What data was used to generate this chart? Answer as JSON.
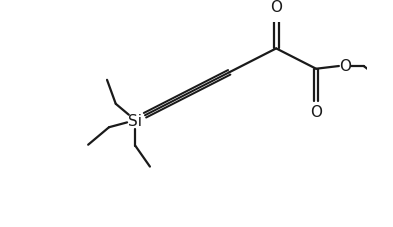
{
  "bg_color": "#ffffff",
  "line_color": "#1a1a1a",
  "line_width": 1.6,
  "figsize": [
    3.93,
    2.28
  ],
  "dpi": 100,
  "xlim": [
    0,
    10
  ],
  "ylim": [
    0,
    6
  ],
  "si_x": 3.2,
  "si_y": 3.1,
  "font_size": 11
}
